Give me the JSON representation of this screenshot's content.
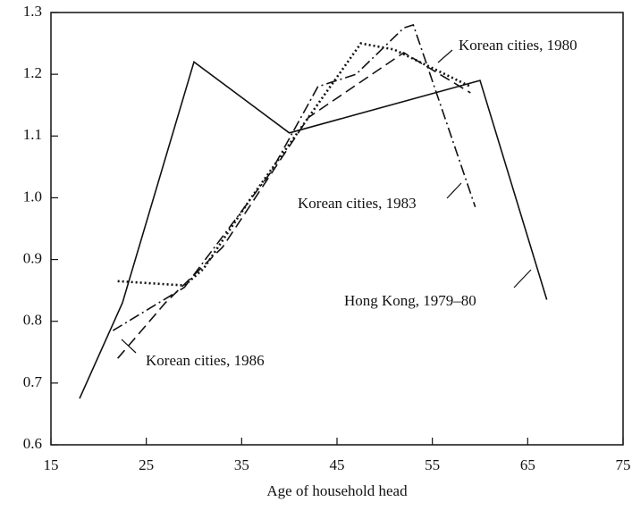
{
  "chart_data": {
    "type": "line",
    "xlabel": "Age of household head",
    "xlim": [
      15,
      75
    ],
    "xticks": [
      15,
      25,
      35,
      45,
      55,
      65,
      75
    ],
    "ylim": [
      0.6,
      1.3
    ],
    "yticks": [
      0.6,
      0.7,
      0.8,
      0.9,
      {
        "value": 1.0,
        "label": "1.0"
      },
      1.1,
      1.2,
      1.3
    ],
    "series": [
      {
        "name": "Hong Kong, 1979–80",
        "color": "#111111",
        "dash": "solid",
        "x": [
          18,
          22.5,
          30,
          40,
          60,
          67
        ],
        "values": [
          0.675,
          0.83,
          1.22,
          1.105,
          1.19,
          0.835
        ]
      },
      {
        "name": "Korean cities, 1980",
        "color": "#111111",
        "dash": "dashed",
        "x": [
          22,
          27,
          33,
          42,
          52,
          59
        ],
        "values": [
          0.74,
          0.83,
          0.92,
          1.13,
          1.235,
          1.17
        ]
      },
      {
        "name": "Korean cities, 1983",
        "color": "#111111",
        "dash": "dashdot",
        "x": [
          21.5,
          29,
          38,
          43,
          47,
          52,
          53,
          59.5
        ],
        "values": [
          0.785,
          0.855,
          1.04,
          1.18,
          1.2,
          1.275,
          1.28,
          0.985
        ]
      },
      {
        "name": "Korean cities, 1986",
        "color": "#111111",
        "dash": "dotted",
        "x": [
          22,
          29,
          31,
          36,
          42,
          47.5,
          51,
          59
        ],
        "values": [
          0.865,
          0.858,
          0.885,
          1.0,
          1.13,
          1.25,
          1.24,
          1.18
        ]
      }
    ]
  }
}
